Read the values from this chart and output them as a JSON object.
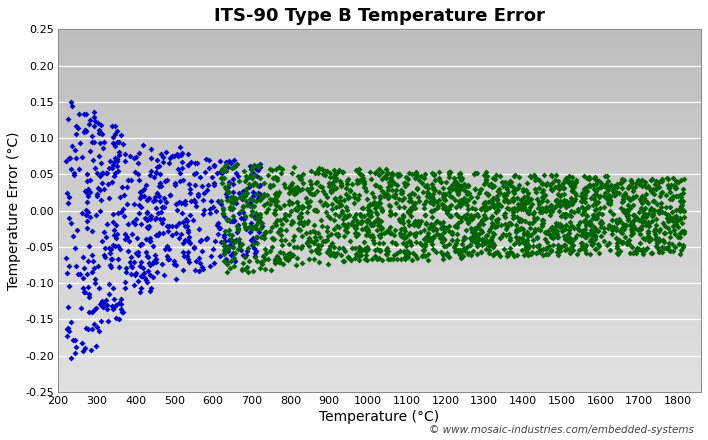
{
  "title": "ITS-90 Type B Temperature Error",
  "xlabel": "Temperature (°C)",
  "ylabel": "Temperature Error (°C)",
  "watermark": "© www.mosaic-industries.com/embedded-systems",
  "xlim": [
    200,
    1860
  ],
  "ylim": [
    -0.25,
    0.25
  ],
  "xticks": [
    200,
    300,
    400,
    500,
    600,
    700,
    800,
    900,
    1000,
    1100,
    1200,
    1300,
    1400,
    1500,
    1600,
    1700,
    1800
  ],
  "yticks": [
    -0.25,
    -0.2,
    -0.15,
    -0.1,
    -0.05,
    0.0,
    0.05,
    0.1,
    0.15,
    0.2,
    0.25
  ],
  "blue_color": "#0000CC",
  "green_color": "#006400",
  "bg_color_top": "#BEBEBE",
  "bg_color_bottom": "#E0E0E0",
  "title_fontsize": 13,
  "axis_label_fontsize": 10,
  "tick_fontsize": 8,
  "watermark_fontsize": 7.5,
  "seed": 42
}
